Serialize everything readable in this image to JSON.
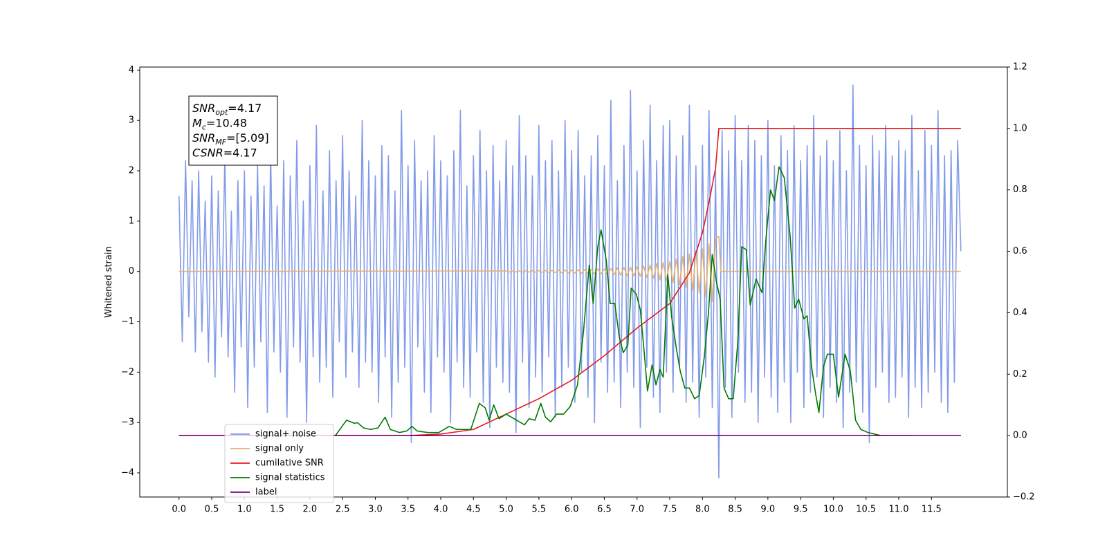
{
  "chart_data": {
    "type": "line",
    "ylabel": "Whitened strain",
    "xlim": [
      -0.6,
      12.66
    ],
    "xticks": [
      {
        "value": 0,
        "label": "0.0"
      },
      0.5,
      {
        "value": 1,
        "label": "1.0"
      },
      1.5,
      {
        "value": 2,
        "label": "2.0"
      },
      2.5,
      {
        "value": 3,
        "label": "3.0"
      },
      3.5,
      {
        "value": 4,
        "label": "4.0"
      },
      4.5,
      {
        "value": 5,
        "label": "5.0"
      },
      5.5,
      {
        "value": 6,
        "label": "6.0"
      },
      6.5,
      {
        "value": 7,
        "label": "7.0"
      },
      7.5,
      {
        "value": 8,
        "label": "8.0"
      },
      8.5,
      {
        "value": 9,
        "label": "9.0"
      },
      9.5,
      {
        "value": 10,
        "label": "10.0"
      },
      10.5,
      {
        "value": 11,
        "label": "11.0"
      },
      11.5
    ],
    "ylim": [
      -4.48,
      4.06
    ],
    "yticks": [
      {
        "value": -4,
        "label": "−4"
      },
      {
        "value": -3,
        "label": "−3"
      },
      {
        "value": -2,
        "label": "−2"
      },
      {
        "value": -1,
        "label": "−1"
      },
      0,
      1,
      2,
      3,
      4
    ],
    "y2lim": [
      -0.2,
      1.2
    ],
    "y2ticks": [
      {
        "value": -0.2,
        "label": "−0.2"
      },
      {
        "value": 0,
        "label": "0.0"
      },
      0.2,
      0.4,
      0.6,
      0.8,
      {
        "value": 1,
        "label": "1.0"
      },
      {
        "value": 1.2,
        "label": "1.2"
      }
    ],
    "legend": "lower left",
    "annotation": [
      {
        "symbol": "SNR",
        "subscript": "opt",
        "text": "=4.17"
      },
      {
        "symbol": "M",
        "subscript": "c",
        "text": "=10.48"
      },
      {
        "symbol": "SNR",
        "subscript": "MF",
        "text": "=[5.09]"
      },
      {
        "symbol": "CSNR",
        "text": "=4.17"
      }
    ],
    "series": [
      {
        "name": "signal+ noise",
        "color": "#7b96e8",
        "axis": "y",
        "x": [
          0,
          0.05,
          0.1,
          0.15,
          0.2,
          0.25,
          0.3,
          0.35,
          0.4,
          0.45,
          0.5,
          0.55,
          0.6,
          0.65,
          0.7,
          0.75,
          0.8,
          0.85,
          0.9,
          0.95,
          1,
          1.05,
          1.1,
          1.15,
          1.2,
          1.25,
          1.3,
          1.35,
          1.4,
          1.45,
          1.5,
          1.55,
          1.6,
          1.65,
          1.7,
          1.75,
          1.8,
          1.85,
          1.9,
          1.95,
          2,
          2.05,
          2.1,
          2.15,
          2.2,
          2.25,
          2.3,
          2.35,
          2.4,
          2.45,
          2.5,
          2.55,
          2.6,
          2.65,
          2.7,
          2.75,
          2.8,
          2.85,
          2.9,
          2.95,
          3,
          3.05,
          3.1,
          3.15,
          3.2,
          3.25,
          3.3,
          3.35,
          3.4,
          3.45,
          3.5,
          3.55,
          3.6,
          3.65,
          3.7,
          3.75,
          3.8,
          3.85,
          3.9,
          3.95,
          4,
          4.05,
          4.1,
          4.15,
          4.2,
          4.25,
          4.3,
          4.35,
          4.4,
          4.45,
          4.5,
          4.55,
          4.6,
          4.65,
          4.7,
          4.75,
          4.8,
          4.85,
          4.9,
          4.95,
          5,
          5.05,
          5.1,
          5.15,
          5.2,
          5.25,
          5.3,
          5.35,
          5.4,
          5.45,
          5.5,
          5.55,
          5.6,
          5.65,
          5.7,
          5.75,
          5.8,
          5.85,
          5.9,
          5.95,
          6,
          6.05,
          6.1,
          6.15,
          6.2,
          6.25,
          6.3,
          6.35,
          6.4,
          6.45,
          6.5,
          6.55,
          6.6,
          6.65,
          6.7,
          6.75,
          6.8,
          6.85,
          6.9,
          6.95,
          7,
          7.05,
          7.1,
          7.15,
          7.2,
          7.25,
          7.3,
          7.35,
          7.4,
          7.45,
          7.5,
          7.55,
          7.6,
          7.65,
          7.7,
          7.75,
          7.8,
          7.85,
          7.9,
          7.95,
          8,
          8.05,
          8.1,
          8.15,
          8.2,
          8.25,
          8.3,
          8.35,
          8.4,
          8.45,
          8.5,
          8.55,
          8.6,
          8.65,
          8.7,
          8.75,
          8.8,
          8.85,
          8.9,
          8.95,
          9,
          9.05,
          9.1,
          9.15,
          9.2,
          9.25,
          9.3,
          9.35,
          9.4,
          9.45,
          9.5,
          9.55,
          9.6,
          9.65,
          9.7,
          9.75,
          9.8,
          9.85,
          9.9,
          9.95,
          10,
          10.05,
          10.1,
          10.15,
          10.2,
          10.25,
          10.3,
          10.35,
          10.4,
          10.45,
          10.5,
          10.55,
          10.6,
          10.65,
          10.7,
          10.75,
          10.8,
          10.85,
          10.9,
          10.95,
          11,
          11.05,
          11.1,
          11.15,
          11.2,
          11.25,
          11.3,
          11.35,
          11.4,
          11.45,
          11.5,
          11.55,
          11.6,
          11.65,
          11.7,
          11.75,
          11.8,
          11.85,
          11.9,
          11.95
        ],
        "values": [
          1.5,
          -1.4,
          2.2,
          -0.9,
          1.8,
          -1.6,
          2.0,
          -1.2,
          1.4,
          -1.8,
          1.9,
          -2.1,
          1.6,
          -1.3,
          2.3,
          -1.7,
          1.2,
          -2.4,
          1.8,
          -1.5,
          2.0,
          -2.7,
          1.5,
          -1.9,
          2.1,
          -1.4,
          1.7,
          -2.8,
          2.4,
          -1.6,
          1.3,
          -2.0,
          2.2,
          -2.9,
          1.9,
          -1.5,
          2.6,
          -1.8,
          1.4,
          -3.0,
          2.1,
          -1.7,
          2.9,
          -2.2,
          1.6,
          -1.9,
          2.4,
          -2.5,
          1.8,
          -1.4,
          2.7,
          -2.1,
          2.0,
          -1.6,
          1.5,
          -2.3,
          3.0,
          -1.8,
          2.2,
          -2.0,
          1.9,
          -2.6,
          2.5,
          -1.7,
          2.3,
          -2.9,
          1.6,
          -2.2,
          3.2,
          -1.9,
          2.1,
          -3.4,
          2.6,
          -1.5,
          1.8,
          -2.4,
          2.0,
          -2.8,
          2.7,
          -1.7,
          2.2,
          -2.0,
          1.9,
          -3.0,
          2.4,
          -1.8,
          3.2,
          -2.3,
          1.7,
          -2.5,
          2.3,
          -1.6,
          2.8,
          -2.6,
          2.0,
          -3.1,
          2.5,
          -1.9,
          1.8,
          -2.2,
          2.6,
          -2.4,
          2.1,
          -3.2,
          3.1,
          -1.8,
          2.3,
          -2.7,
          1.9,
          -2.1,
          2.9,
          -2.4,
          2.2,
          -1.7,
          2.6,
          -2.9,
          2.0,
          -2.3,
          3.0,
          -1.9,
          2.4,
          -2.6,
          2.8,
          -2.0,
          1.9,
          -2.5,
          2.3,
          -3.0,
          2.7,
          -1.8,
          2.1,
          -2.4,
          3.4,
          -2.2,
          1.8,
          -2.7,
          2.5,
          -2.0,
          3.6,
          -2.3,
          2.0,
          -3.1,
          2.6,
          -1.9,
          3.3,
          -2.5,
          2.2,
          -2.8,
          2.9,
          -2.0,
          3.0,
          -2.4,
          2.3,
          -1.9,
          2.7,
          -2.6,
          3.3,
          -2.2,
          2.1,
          -2.9,
          2.5,
          -2.1,
          3.2,
          -2.7,
          2.0,
          -4.1,
          2.8,
          -2.3,
          2.4,
          -2.9,
          3.1,
          -2.0,
          2.2,
          -2.6,
          2.9,
          -2.4,
          2.6,
          -3.0,
          2.3,
          -2.1,
          3.0,
          -2.5,
          2.1,
          -2.8,
          2.7,
          -2.2,
          2.4,
          -3.0,
          2.9,
          -2.0,
          2.2,
          -2.7,
          2.5,
          -2.4,
          3.1,
          -2.1,
          2.3,
          -2.9,
          2.6,
          -2.3,
          2.2,
          -2.6,
          2.8,
          -3.1,
          2.0,
          -2.4,
          3.7,
          -2.2,
          2.5,
          -2.8,
          2.1,
          -3.4,
          2.7,
          -2.3,
          2.4,
          -2.0,
          2.9,
          -2.6,
          2.3,
          -2.5,
          2.6,
          -2.1,
          2.4,
          -2.9,
          3.1,
          -2.3,
          2.0,
          -2.7,
          2.8,
          -2.4,
          2.5,
          -2.0,
          3.2,
          -2.6,
          2.3,
          -2.8,
          2.4,
          -2.2,
          2.6,
          0.4
        ]
      },
      {
        "name": "signal only",
        "color": "#e8b06a",
        "axis": "y",
        "x": [
          0,
          5,
          5.05,
          5.1,
          5.15,
          5.2,
          5.25,
          5.3,
          5.35,
          5.4,
          5.45,
          5.5,
          5.55,
          5.6,
          5.65,
          5.7,
          5.75,
          5.8,
          5.85,
          5.9,
          5.95,
          6,
          6.05,
          6.1,
          6.15,
          6.2,
          6.25,
          6.3,
          6.35,
          6.4,
          6.45,
          6.5,
          6.55,
          6.6,
          6.65,
          6.7,
          6.75,
          6.8,
          6.85,
          6.9,
          6.95,
          7,
          7.05,
          7.1,
          7.15,
          7.2,
          7.25,
          7.3,
          7.35,
          7.4,
          7.45,
          7.5,
          7.55,
          7.6,
          7.65,
          7.7,
          7.75,
          7.8,
          7.85,
          7.9,
          7.95,
          8,
          8.05,
          8.1,
          8.15,
          8.2,
          8.25,
          8.28,
          11.95
        ],
        "values": [
          0,
          0.01,
          -0.01,
          0.01,
          -0.01,
          0.012,
          -0.012,
          0.013,
          -0.014,
          0.015,
          -0.016,
          0.017,
          -0.018,
          0.019,
          -0.02,
          0.022,
          -0.024,
          0.026,
          -0.028,
          0.029,
          -0.03,
          0.03,
          -0.033,
          0.035,
          -0.037,
          0.04,
          -0.042,
          0.044,
          -0.046,
          0.048,
          -0.05,
          0.05,
          -0.055,
          0.06,
          -0.065,
          0.07,
          -0.075,
          0.08,
          -0.083,
          0.086,
          -0.09,
          0.09,
          -0.1,
          0.11,
          -0.12,
          0.13,
          -0.14,
          0.16,
          -0.17,
          0.18,
          -0.19,
          0.2,
          -0.22,
          0.25,
          -0.27,
          0.3,
          -0.32,
          0.35,
          -0.38,
          0.41,
          -0.43,
          0.45,
          -0.5,
          0.55,
          -0.6,
          0.65,
          0.7,
          0,
          0
        ]
      },
      {
        "name": "cumilative SNR",
        "color": "#e31a1c",
        "axis": "y2",
        "x": [
          0,
          3.5,
          4.0,
          4.5,
          5.0,
          5.5,
          6.0,
          6.5,
          7.0,
          7.5,
          7.8,
          8.0,
          8.1,
          8.2,
          8.25,
          11.95
        ],
        "values": [
          0,
          0,
          0.005,
          0.02,
          0.07,
          0.12,
          0.18,
          0.26,
          0.35,
          0.43,
          0.53,
          0.66,
          0.76,
          0.87,
          1.0,
          1.0
        ]
      },
      {
        "name": "signal statistics",
        "color": "#007a00",
        "axis": "y2",
        "x": [
          2.39,
          2.56,
          2.68,
          2.73,
          2.82,
          2.93,
          3.04,
          3.15,
          3.23,
          3.37,
          3.48,
          3.56,
          3.64,
          3.8,
          3.97,
          4.13,
          4.24,
          4.46,
          4.59,
          4.68,
          4.74,
          4.81,
          4.89,
          5.0,
          5.28,
          5.35,
          5.44,
          5.53,
          5.6,
          5.68,
          5.77,
          5.88,
          5.98,
          6.09,
          6.18,
          6.27,
          6.33,
          6.4,
          6.45,
          6.53,
          6.59,
          6.66,
          6.73,
          6.79,
          6.86,
          6.91,
          6.99,
          7.05,
          7.11,
          7.16,
          7.23,
          7.29,
          7.35,
          7.4,
          7.47,
          7.53,
          7.6,
          7.66,
          7.73,
          7.8,
          7.88,
          7.95,
          8.03,
          8.09,
          8.15,
          8.21,
          8.27,
          8.33,
          8.4,
          8.47,
          8.54,
          8.6,
          8.67,
          8.73,
          8.82,
          8.91,
          8.97,
          9.04,
          9.1,
          9.17,
          9.25,
          9.34,
          9.41,
          9.47,
          9.55,
          9.6,
          9.67,
          9.73,
          9.78,
          9.85,
          9.91,
          10.0,
          10.08,
          10.18,
          10.26,
          10.34,
          10.42,
          10.53,
          10.73,
          11.22
        ],
        "values": [
          0,
          0.05,
          0.04,
          0.042,
          0.025,
          0.02,
          0.025,
          0.06,
          0.02,
          0.01,
          0.015,
          0.03,
          0.015,
          0.01,
          0.01,
          0.03,
          0.02,
          0.02,
          0.105,
          0.09,
          0.05,
          0.1,
          0.055,
          0.07,
          0.035,
          0.055,
          0.05,
          0.105,
          0.06,
          0.045,
          0.07,
          0.07,
          0.095,
          0.165,
          0.335,
          0.555,
          0.43,
          0.615,
          0.67,
          0.57,
          0.43,
          0.43,
          0.32,
          0.27,
          0.295,
          0.48,
          0.46,
          0.41,
          0.27,
          0.145,
          0.23,
          0.165,
          0.215,
          0.19,
          0.525,
          0.385,
          0.285,
          0.21,
          0.155,
          0.155,
          0.12,
          0.13,
          0.26,
          0.395,
          0.59,
          0.505,
          0.445,
          0.155,
          0.12,
          0.12,
          0.305,
          0.615,
          0.605,
          0.425,
          0.51,
          0.465,
          0.64,
          0.8,
          0.765,
          0.875,
          0.84,
          0.65,
          0.415,
          0.445,
          0.38,
          0.39,
          0.22,
          0.135,
          0.075,
          0.225,
          0.265,
          0.265,
          0.125,
          0.265,
          0.21,
          0.05,
          0.02,
          0.01,
          0,
          0
        ]
      },
      {
        "name": "label",
        "color": "#800080",
        "axis": "y2",
        "x": [
          0,
          11.95
        ],
        "values": [
          0,
          0
        ]
      }
    ]
  }
}
